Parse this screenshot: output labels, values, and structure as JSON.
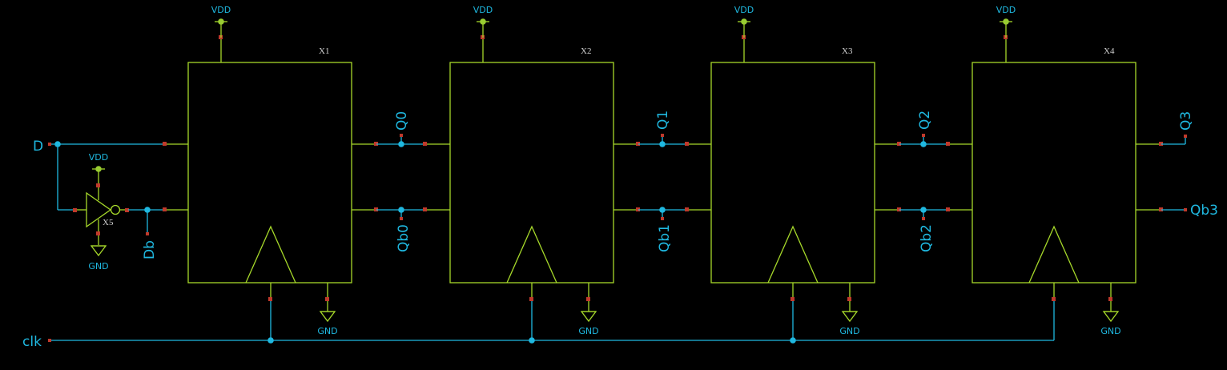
{
  "colors": {
    "background": "#000000",
    "wire": "#1fb8e0",
    "symbol": "#a6d82a",
    "pin_marker": "#c0392b",
    "supply_dot": "#9acd32",
    "instance_text": "#d0d0d0"
  },
  "supply": {
    "vdd": "VDD",
    "gnd": "GND"
  },
  "ports": {
    "d": "D",
    "db": "Db",
    "clk": "clk"
  },
  "instances": [
    {
      "name": "X1",
      "q": "Q0",
      "qb": "Qb0"
    },
    {
      "name": "X2",
      "q": "Q1",
      "qb": "Qb1"
    },
    {
      "name": "X3",
      "q": "Q2",
      "qb": "Qb2"
    },
    {
      "name": "X4",
      "q": "Q3",
      "qb": "Qb3"
    }
  ],
  "inverter": {
    "name": "X5"
  }
}
